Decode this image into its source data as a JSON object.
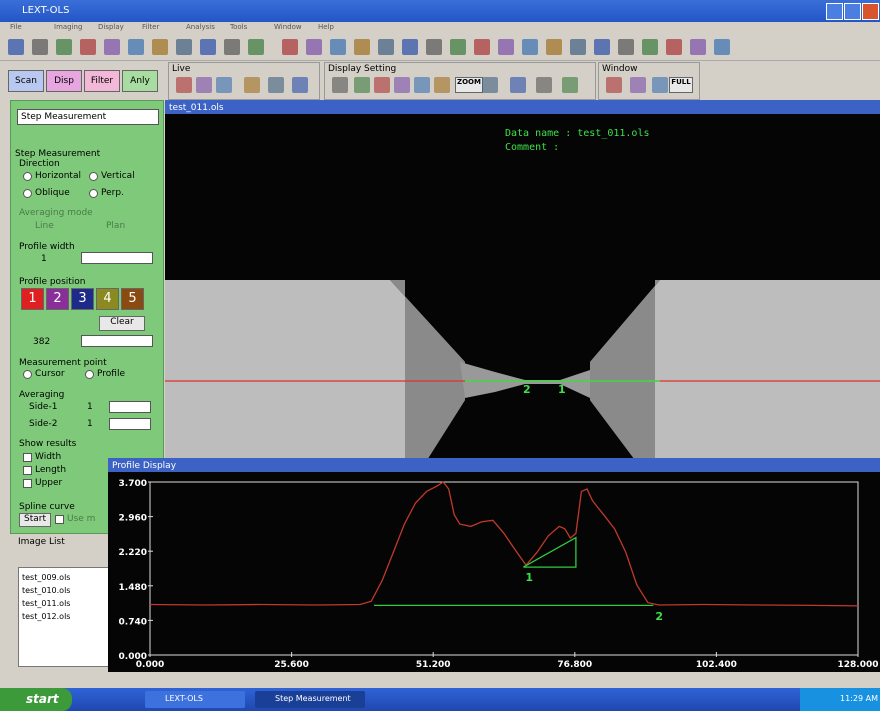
{
  "window": {
    "title": "LEXT-OLS",
    "menu": [
      "File",
      "Imaging",
      "Display",
      "Filter",
      "Analysis",
      "Tools",
      "Window",
      "Help"
    ]
  },
  "toolbar": {
    "groups": [
      "Live",
      "Display Setting",
      "Window"
    ],
    "zoom": "ZOOM",
    "full": "FULL"
  },
  "tabs": [
    "Scan",
    "Disp",
    "Filter",
    "Anly"
  ],
  "panel": {
    "dropdown": "Step Measurement",
    "heading": "Step Measurement",
    "direction": "Direction",
    "dir_options": [
      "Horizontal",
      "Vertical",
      "Oblique",
      "Perp."
    ],
    "averaging_mode": "Averaging mode",
    "avg_options": [
      "Line",
      "Plan"
    ],
    "profile_width": "Profile width",
    "profile_width_value": "1",
    "profile_position": "Profile position",
    "positions": [
      "1",
      "2",
      "3",
      "4",
      "5"
    ],
    "clear": "Clear",
    "position_value": "382",
    "measurement_point": "Measurement point",
    "point_options": [
      "Cursor",
      "Profile"
    ],
    "averaging": "Averaging",
    "side1": "Side-1",
    "side1_value": "1",
    "side2": "Side-2",
    "side2_value": "1",
    "show_results": "Show results",
    "results": [
      "Width",
      "Length",
      "Upper"
    ],
    "spline": "Spline curve",
    "start": "Start",
    "use": "Use m"
  },
  "image_list": {
    "title": "Image List",
    "items": [
      "test_009.ols",
      "test_010.ols",
      "test_011.ols",
      "test_012.ols"
    ]
  },
  "image_view": {
    "title": "test_011.ols",
    "data_name": "Data name : test_011.ols",
    "comment": "Comment   :",
    "markers": [
      "2",
      "1"
    ]
  },
  "chart_data": {
    "type": "line",
    "title": "Profile Display",
    "x": [
      0,
      10,
      20,
      30,
      38,
      40,
      42,
      44,
      46,
      48,
      50,
      52,
      53,
      54,
      55,
      56,
      58,
      60,
      62,
      64,
      66,
      68,
      70,
      72,
      74,
      75,
      76,
      77,
      78,
      79,
      80,
      82,
      84,
      86,
      88,
      90,
      92,
      100,
      110,
      120,
      128
    ],
    "series": [
      {
        "color": "#c0392b",
        "values": [
          1.08,
          1.07,
          1.08,
          1.07,
          1.08,
          1.15,
          1.6,
          2.2,
          2.8,
          3.25,
          3.5,
          3.62,
          3.7,
          3.55,
          3.0,
          2.8,
          2.75,
          2.85,
          2.88,
          2.6,
          2.25,
          1.92,
          2.2,
          2.55,
          2.75,
          2.7,
          2.5,
          2.6,
          3.5,
          3.55,
          3.3,
          3.0,
          2.7,
          2.2,
          1.5,
          1.12,
          1.07,
          1.08,
          1.07,
          1.06,
          1.05
        ]
      }
    ],
    "measure_lines": [
      {
        "color": "#2ecc40",
        "x": [
          40.5,
          91
        ],
        "y": [
          1.06,
          1.06
        ]
      },
      {
        "color": "#2ecc40",
        "x": [
          67.5,
          77,
          77,
          67.5
        ],
        "y": [
          1.88,
          2.51,
          1.88,
          1.88
        ]
      }
    ],
    "annotations": [
      {
        "text": "1",
        "x": 67.5,
        "y": 1.88
      },
      {
        "text": "2",
        "x": 91,
        "y": 1.05
      }
    ],
    "xlim": [
      0,
      128
    ],
    "ylim": [
      0,
      3.7
    ],
    "xticks": [
      {
        "value": 0,
        "label": "0.000"
      },
      {
        "value": 25.6,
        "label": "25.600"
      },
      {
        "value": 51.2,
        "label": "51.200"
      },
      {
        "value": 76.8,
        "label": "76.800"
      },
      {
        "value": 102.4,
        "label": "102.400"
      },
      {
        "value": 128,
        "label": "128.000"
      }
    ],
    "yticks": [
      {
        "value": 0,
        "label": "0.000"
      },
      {
        "value": 0.74,
        "label": "0.740"
      },
      {
        "value": 1.48,
        "label": "1.480"
      },
      {
        "value": 2.22,
        "label": "2.220"
      },
      {
        "value": 2.96,
        "label": "2.960"
      },
      {
        "value": 3.7,
        "label": "3.700"
      }
    ]
  },
  "taskbar": {
    "start": "start",
    "tasks": [
      "LEXT-OLS",
      "Step Measurement"
    ],
    "clock": "11:29 AM"
  }
}
